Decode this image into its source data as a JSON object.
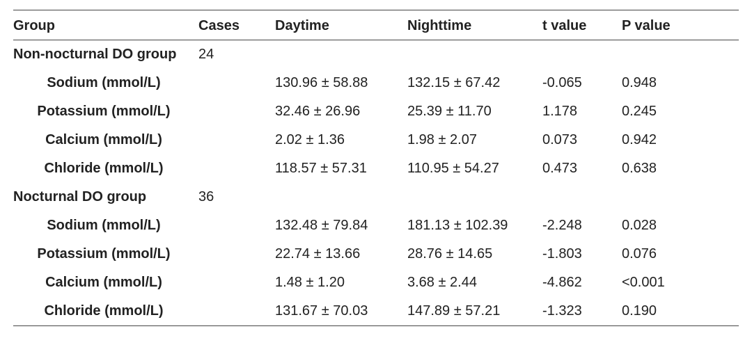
{
  "table": {
    "headers": {
      "group": "Group",
      "cases": "Cases",
      "daytime": "Daytime",
      "nighttime": "Nighttime",
      "t_value": "t value",
      "p_value": "P value"
    },
    "groups": [
      {
        "name": "Non-nocturnal DO group",
        "cases": "24",
        "rows": [
          {
            "label": "Sodium (mmol/L)",
            "daytime": "130.96 ± 58.88",
            "nighttime": "132.15 ± 67.42",
            "t": "-0.065",
            "p": "0.948"
          },
          {
            "label": "Potassium (mmol/L)",
            "daytime": "32.46 ± 26.96",
            "nighttime": "25.39 ± 11.70",
            "t": "1.178",
            "p": "0.245"
          },
          {
            "label": "Calcium (mmol/L)",
            "daytime": "2.02 ± 1.36",
            "nighttime": "1.98 ± 2.07",
            "t": "0.073",
            "p": "0.942"
          },
          {
            "label": "Chloride (mmol/L)",
            "daytime": "118.57 ± 57.31",
            "nighttime": "110.95 ± 54.27",
            "t": "0.473",
            "p": "0.638"
          }
        ]
      },
      {
        "name": "Nocturnal DO group",
        "cases": "36",
        "rows": [
          {
            "label": "Sodium (mmol/L)",
            "daytime": "132.48 ± 79.84",
            "nighttime": "181.13 ± 102.39",
            "t": "-2.248",
            "p": "0.028"
          },
          {
            "label": "Potassium (mmol/L)",
            "daytime": "22.74 ± 13.66",
            "nighttime": "28.76 ± 14.65",
            "t": "-1.803",
            "p": "0.076"
          },
          {
            "label": "Calcium (mmol/L)",
            "daytime": "1.48 ± 1.20",
            "nighttime": "3.68 ± 2.44",
            "t": "-4.862",
            "p": "<0.001"
          },
          {
            "label": "Chloride (mmol/L)",
            "daytime": "131.67 ± 70.03",
            "nighttime": "147.89 ± 57.21",
            "t": "-1.323",
            "p": "0.190"
          }
        ]
      }
    ]
  }
}
